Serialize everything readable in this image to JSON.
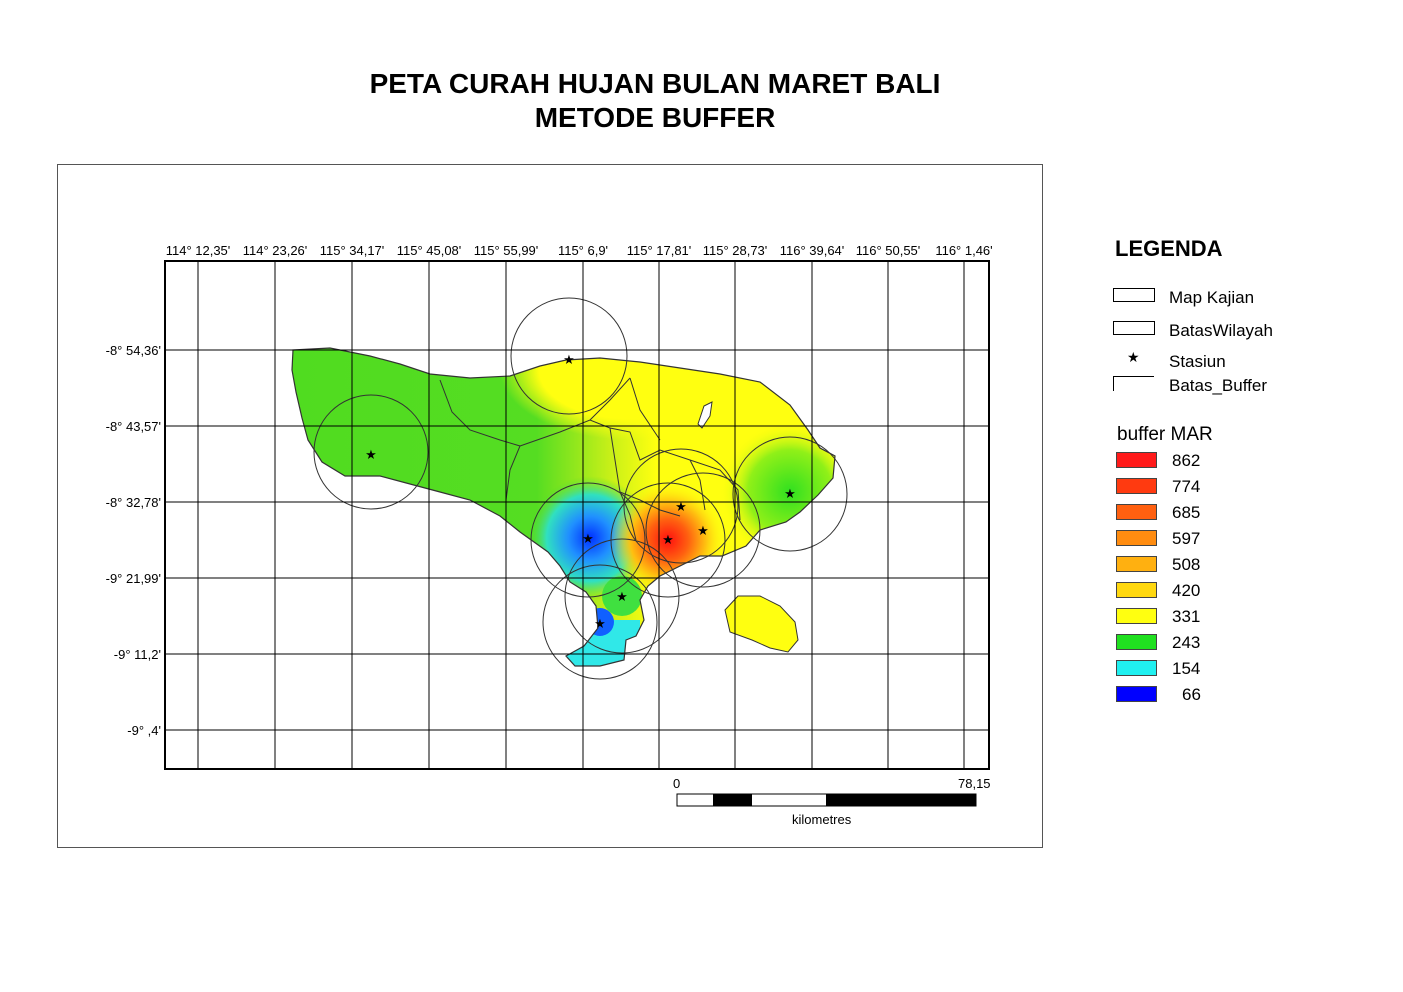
{
  "title": {
    "line1": "PETA CURAH HUJAN BULAN MARET BALI",
    "line2": "METODE BUFFER"
  },
  "grid": {
    "lon_labels": [
      "114° 12,35'",
      "114° 23,26'",
      "115° 34,17'",
      "115° 45,08'",
      "115° 55,99'",
      "115° 6,9'",
      "115° 17,81'",
      "115° 28,73'",
      "116° 39,64'",
      "116° 50,55'",
      "116° 1,46'"
    ],
    "lat_labels": [
      "-8° 54,36'",
      "-8° 43,57'",
      "-8° 32,78'",
      "-9° 21,99'",
      "-9° 11,2'",
      "-9° ,4'"
    ]
  },
  "legend": {
    "title": "LEGENDA",
    "items": [
      {
        "label": "Map Kajian",
        "symbol": "box-full"
      },
      {
        "label": "BatasWilayah",
        "symbol": "box-full"
      },
      {
        "label": "Stasiun",
        "symbol": "star"
      },
      {
        "label": "Batas_Buffer",
        "symbol": "box-open"
      }
    ],
    "buffer_title": "buffer MAR",
    "classes": [
      {
        "value": "862",
        "color": "#ff1a1a"
      },
      {
        "value": "774",
        "color": "#ff3a10"
      },
      {
        "value": "685",
        "color": "#ff6010"
      },
      {
        "value": "597",
        "color": "#ff8c10"
      },
      {
        "value": "508",
        "color": "#ffb010"
      },
      {
        "value": "420",
        "color": "#ffd810"
      },
      {
        "value": "331",
        "color": "#ffff10"
      },
      {
        "value": "243",
        "color": "#20e020"
      },
      {
        "value": "154",
        "color": "#20f0f0"
      },
      {
        "value": "66",
        "color": "#0000ff"
      }
    ]
  },
  "scale_bar": {
    "start_label": "0",
    "end_label": "78,15",
    "unit_label": "kilometres"
  },
  "colors": {
    "island_green": "#55dd22",
    "island_yellow": "#ffff10",
    "hot_red": "#ff2020",
    "cold_blue": "#1060ff",
    "cyan": "#30e8e8"
  }
}
